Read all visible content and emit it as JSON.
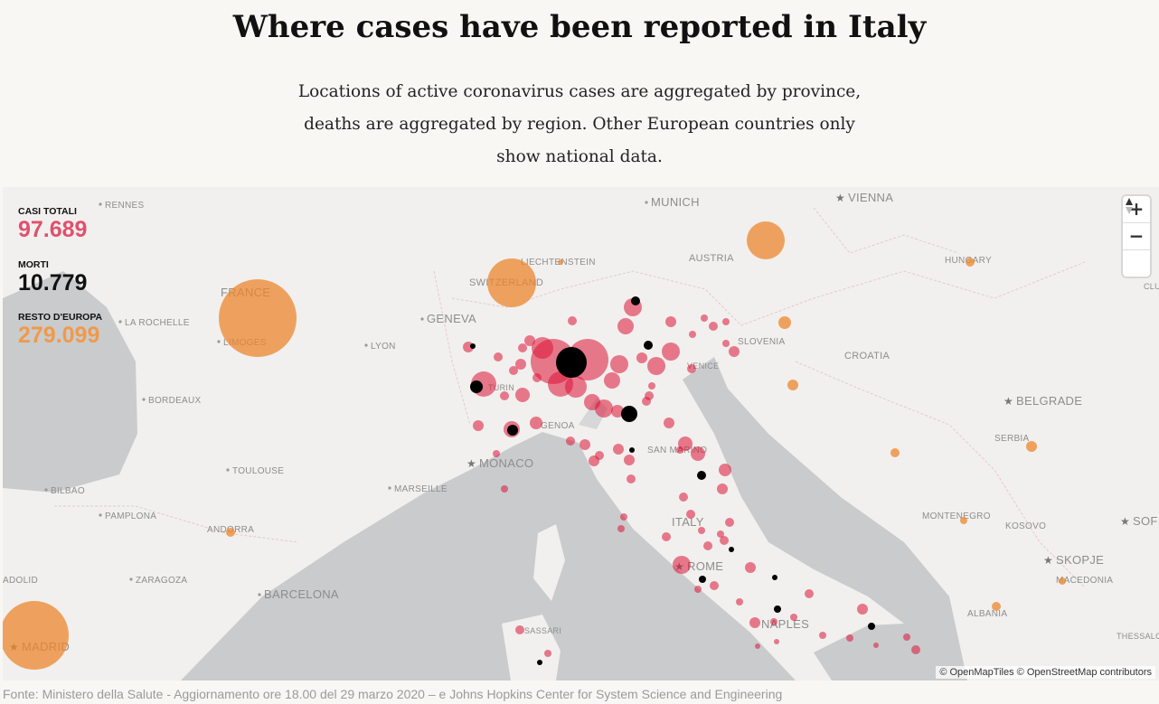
{
  "header": {
    "title": "Where cases have been reported in Italy",
    "subtitle": "Locations of active coronavirus cases are aggregated by province, deaths are aggregated by region. Other European countries only show national data."
  },
  "stats": [
    {
      "label": "CASI TOTALI",
      "value": "97.689"
    },
    {
      "label": "MORTI",
      "value": "10.779"
    },
    {
      "label": "RESTO D'EUROPA",
      "value": "279.099"
    }
  ],
  "map": {
    "places": [
      "RENNES",
      "MUNICH",
      "VIENNA",
      "LIECHTENSTEIN",
      "AUSTRIA",
      "HUNGARY",
      "SWITZERLAND",
      "FRANCE",
      "GENEVA",
      "LA ROCHELLE",
      "LIMOGES",
      "LYON",
      "SLOVENIA",
      "VENICE",
      "CROATIA",
      "BORDEAUX",
      "TURIN",
      "BELGRADE",
      "SERBIA",
      "GENOA",
      "SAN MARINO",
      "MONACO",
      "TOULOUSE",
      "MARSEILLE",
      "BILBAO",
      "PAMPLONA",
      "ITALY",
      "MONTENEGRO",
      "KOSOVO",
      "SOF",
      "ANDORRA",
      "SKOPJE",
      "ROME",
      "ADOLID",
      "ZARAGOZA",
      "MACEDONIA",
      "BARCELONA",
      "NAPLES",
      "ALBANIA",
      "SASSARI",
      "MADRID",
      "THESSALO",
      "CLU"
    ],
    "zoom_controls": [
      "+",
      "−"
    ],
    "attribution": "© OpenMapTiles © OpenStreetMap contributors"
  },
  "footer": {
    "source": "Fonte: Ministero della Salute - Aggiornamento ore 18.00 del 29 marzo 2020 – e Johns Hopkins Center for System Science and Engineering"
  }
}
